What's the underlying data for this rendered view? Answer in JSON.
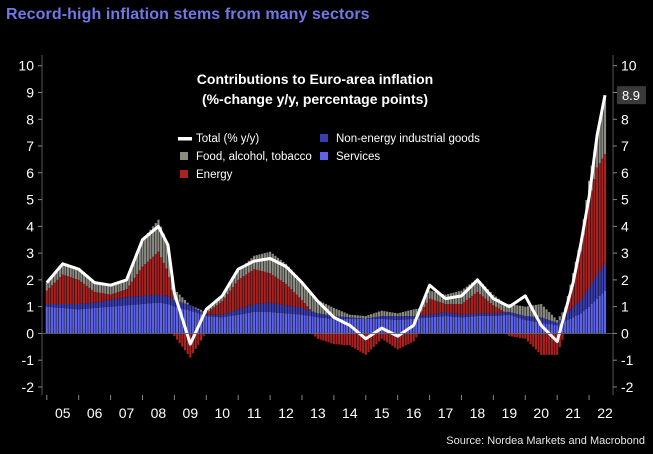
{
  "header": {
    "headline": "Record-high inflation stems from many sectors"
  },
  "source": "Source: Nordea Markets and Macrobond",
  "colors": {
    "background": "#000000",
    "headline": "#6f78e6",
    "total": "#ffffff",
    "food": "#8b8b83",
    "energy": "#a82222",
    "neig": "#3a3fb0",
    "services": "#5e64e8",
    "last_value_box": "#3a3a3a"
  },
  "chart_data": {
    "type": "area",
    "stacked": true,
    "title": "Contributions to Euro-area inflation",
    "subtitle": "(%-change y/y, percentage points)",
    "ylim": [
      -2.3,
      10.4
    ],
    "yticks": [
      -2,
      -1,
      0,
      1,
      2,
      3,
      4,
      5,
      6,
      7,
      8,
      9,
      10
    ],
    "xlim": [
      2004.85,
      2022.75
    ],
    "xtick_labels": [
      "05",
      "06",
      "07",
      "08",
      "09",
      "10",
      "11",
      "12",
      "13",
      "14",
      "15",
      "16",
      "17",
      "18",
      "19",
      "20",
      "21",
      "22"
    ],
    "legend_position": "top-center",
    "last_value_label": "8.9",
    "legend": [
      {
        "key": "total",
        "label": "Total (% y/y)"
      },
      {
        "key": "neig",
        "label": "Non-energy industrial goods"
      },
      {
        "key": "food",
        "label": "Food, alcohol, tobacco"
      },
      {
        "key": "services",
        "label": "Services"
      },
      {
        "key": "energy",
        "label": "Energy"
      }
    ],
    "x": [
      2005.0,
      2005.5,
      2006.0,
      2006.5,
      2007.0,
      2007.5,
      2008.0,
      2008.5,
      2008.8,
      2009.0,
      2009.5,
      2010.0,
      2010.5,
      2011.0,
      2011.5,
      2012.0,
      2012.5,
      2013.0,
      2013.5,
      2014.0,
      2014.5,
      2015.0,
      2015.5,
      2016.0,
      2016.5,
      2017.0,
      2017.5,
      2018.0,
      2018.5,
      2019.0,
      2019.5,
      2020.0,
      2020.5,
      2021.0,
      2021.5,
      2021.75,
      2022.0,
      2022.25,
      2022.5
    ],
    "series": [
      {
        "key": "services",
        "name": "Services",
        "values": [
          1.0,
          0.95,
          0.9,
          0.95,
          1.0,
          1.05,
          1.1,
          1.15,
          1.1,
          1.0,
          0.85,
          0.65,
          0.6,
          0.7,
          0.8,
          0.8,
          0.75,
          0.7,
          0.6,
          0.55,
          0.55,
          0.55,
          0.55,
          0.5,
          0.55,
          0.6,
          0.65,
          0.6,
          0.65,
          0.65,
          0.7,
          0.5,
          0.4,
          0.3,
          0.6,
          0.75,
          1.0,
          1.3,
          1.6
        ]
      },
      {
        "key": "neig",
        "name": "Non-energy industrial goods",
        "values": [
          0.1,
          0.15,
          0.2,
          0.2,
          0.25,
          0.3,
          0.3,
          0.3,
          0.3,
          0.25,
          0.2,
          0.05,
          0.1,
          0.2,
          0.3,
          0.35,
          0.3,
          0.25,
          0.15,
          0.1,
          0.05,
          0.0,
          0.1,
          0.15,
          0.1,
          0.1,
          0.15,
          0.1,
          0.1,
          0.1,
          0.1,
          0.15,
          0.2,
          0.1,
          0.4,
          0.5,
          0.7,
          0.9,
          1.0
        ]
      },
      {
        "key": "energy",
        "name": "Energy",
        "values": [
          0.5,
          1.1,
          0.9,
          0.4,
          0.2,
          0.3,
          1.1,
          1.6,
          0.9,
          -0.1,
          -0.9,
          0.05,
          0.5,
          1.1,
          1.3,
          1.1,
          0.8,
          0.3,
          -0.2,
          -0.4,
          -0.45,
          -0.8,
          -0.2,
          -0.6,
          -0.3,
          0.6,
          0.3,
          0.4,
          0.8,
          0.3,
          -0.1,
          -0.2,
          -0.8,
          -0.8,
          0.9,
          1.8,
          3.2,
          4.0,
          4.1
        ]
      },
      {
        "key": "food",
        "name": "Food, alcohol, tobacco",
        "values": [
          0.3,
          0.4,
          0.45,
          0.4,
          0.35,
          0.4,
          1.0,
          1.2,
          1.0,
          0.4,
          0.0,
          0.1,
          0.15,
          0.35,
          0.5,
          0.8,
          0.75,
          0.7,
          0.5,
          0.3,
          0.1,
          0.1,
          0.2,
          0.1,
          0.25,
          0.3,
          0.35,
          0.5,
          0.5,
          0.4,
          0.3,
          0.35,
          0.5,
          0.1,
          0.35,
          0.5,
          0.8,
          1.2,
          2.1
        ]
      }
    ],
    "total": {
      "name": "Total (% y/y)",
      "values": [
        1.9,
        2.6,
        2.4,
        1.9,
        1.8,
        2.0,
        3.5,
        4.0,
        3.3,
        1.5,
        -0.4,
        0.9,
        1.4,
        2.4,
        2.7,
        2.8,
        2.5,
        1.9,
        1.2,
        0.6,
        0.3,
        -0.2,
        0.2,
        -0.1,
        0.3,
        1.8,
        1.3,
        1.4,
        2.0,
        1.3,
        1.0,
        1.4,
        0.3,
        -0.3,
        1.9,
        3.4,
        5.1,
        7.4,
        8.9
      ]
    }
  }
}
